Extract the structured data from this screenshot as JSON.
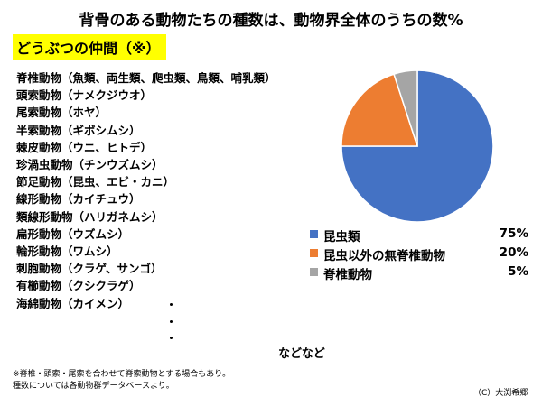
{
  "title": "背骨のある動物たちの種数は、動物界全体のうちの数%",
  "subtitle": "どうぶつの仲間（※）",
  "animal_groups": [
    "脊椎動物（魚類、両生類、爬虫類、鳥類、哺乳類）",
    "頭索動物（ナメクジウオ）",
    "尾索動物（ホヤ）",
    "半索動物（ギボシムシ）",
    "棘皮動物（ウニ、ヒトデ）",
    "珍渦虫動物（チンウズムシ）",
    "節足動物（昆虫、エビ・カニ）",
    "線形動物（カイチュウ）",
    "類線形動物（ハリガネムシ）",
    "扁形動物（ウズムシ）",
    "輪形動物（ワムシ）",
    "刺胞動物（クラゲ、サンゴ）",
    "有櫛動物（クシクラゲ）",
    "海綿動物（カイメン）"
  ],
  "more_marker": "などなど",
  "footnotes": [
    "※脊椎・頭索・尾索を合わせて脊索動物とする場合もあり。",
    "種数については各動物群データベースより。"
  ],
  "credit": "（C）大渕希郷",
  "chart_data": {
    "type": "pie",
    "title": "",
    "start_angle_deg": 0,
    "direction": "clockwise",
    "slices": [
      {
        "label": "昆虫類",
        "value": 75,
        "display": "75%",
        "color": "#4472c4"
      },
      {
        "label": "昆虫以外の無脊椎動物",
        "value": 20,
        "display": "20%",
        "color": "#ed7d31"
      },
      {
        "label": "脊椎動物",
        "value": 5,
        "display": "5%",
        "color": "#a5a5a5"
      }
    ],
    "legend_position": "bottom"
  }
}
